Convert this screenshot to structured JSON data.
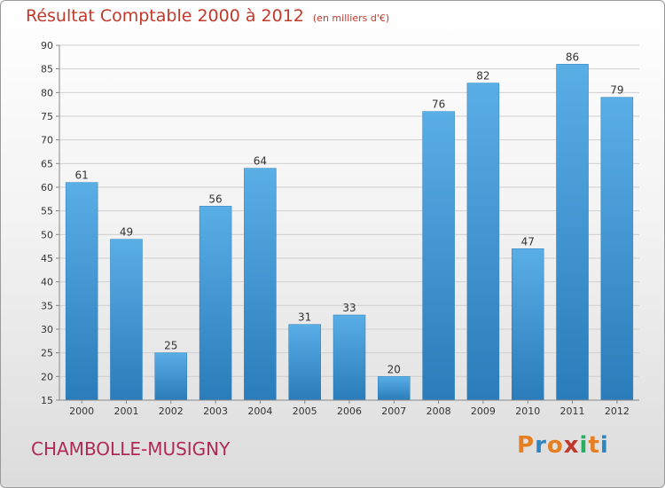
{
  "header": {
    "title": "Résultat Comptable 2000 à 2012",
    "unit": "(en milliers d'€)"
  },
  "footer": {
    "commune": "CHAMBOLLE-MUSIGNY",
    "logo": "Proxiti"
  },
  "colors": {
    "title": "#c0392b",
    "commune": "#b02a55",
    "bar_top": "#5aaee6",
    "bar_bottom": "#2a7cba"
  },
  "chart_data": {
    "type": "bar",
    "title": "Résultat Comptable 2000 à 2012",
    "ylabel": "en milliers d'€",
    "xlabel": "",
    "categories": [
      "2000",
      "2001",
      "2002",
      "2003",
      "2004",
      "2005",
      "2006",
      "2007",
      "2008",
      "2009",
      "2010",
      "2011",
      "2012"
    ],
    "values": [
      61,
      49,
      25,
      56,
      64,
      31,
      33,
      20,
      76,
      82,
      47,
      86,
      79
    ],
    "ylim": [
      15,
      90
    ],
    "yticks": [
      15,
      20,
      25,
      30,
      35,
      40,
      45,
      50,
      55,
      60,
      65,
      70,
      75,
      80,
      85,
      90
    ],
    "grid": true
  }
}
